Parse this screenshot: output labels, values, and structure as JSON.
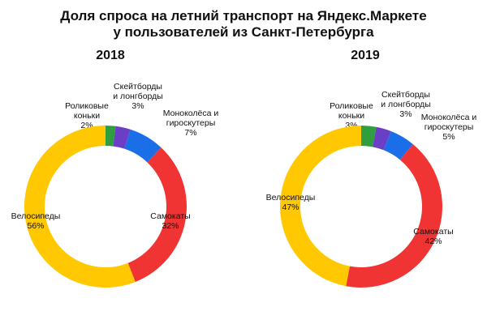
{
  "title_line1": "Доля спроса на летний транспорт на Яндекс.Маркете",
  "title_line2": "у пользователей из Санкт-Петербурга",
  "colors": {
    "roller": "#2e9e3f",
    "skate": "#6a3fc6",
    "mono": "#1a6fe8",
    "scooter": "#f03434",
    "bike": "#ffc800"
  },
  "chart_data": [
    {
      "type": "pie",
      "style": "donut",
      "title": "2018",
      "slices": [
        {
          "key": "roller",
          "label": [
            "Роликовые",
            "коньки"
          ],
          "value": 2,
          "value_label": "2%"
        },
        {
          "key": "skate",
          "label": [
            "Скейтборды",
            "и лонгборды"
          ],
          "value": 3,
          "value_label": "3%"
        },
        {
          "key": "mono",
          "label": [
            "Моноколёса и",
            "гироскутеры"
          ],
          "value": 7,
          "value_label": "7%"
        },
        {
          "key": "scooter",
          "label": [
            "Самокаты"
          ],
          "value": 32,
          "value_label": "32%"
        },
        {
          "key": "bike",
          "label": [
            "Велосипеды"
          ],
          "value": 56,
          "value_label": "56%"
        }
      ]
    },
    {
      "type": "pie",
      "style": "donut",
      "title": "2019",
      "slices": [
        {
          "key": "roller",
          "label": [
            "Роликовые",
            "коньки"
          ],
          "value": 3,
          "value_label": "3%"
        },
        {
          "key": "skate",
          "label": [
            "Скейтборды",
            "и лонгборды"
          ],
          "value": 3,
          "value_label": "3%"
        },
        {
          "key": "mono",
          "label": [
            "Моноколёса и",
            "гироскутеры"
          ],
          "value": 5,
          "value_label": "5%"
        },
        {
          "key": "scooter",
          "label": [
            "Самокаты"
          ],
          "value": 42,
          "value_label": "42%"
        },
        {
          "key": "bike",
          "label": [
            "Велосипеды"
          ],
          "value": 47,
          "value_label": "47%"
        }
      ]
    }
  ]
}
